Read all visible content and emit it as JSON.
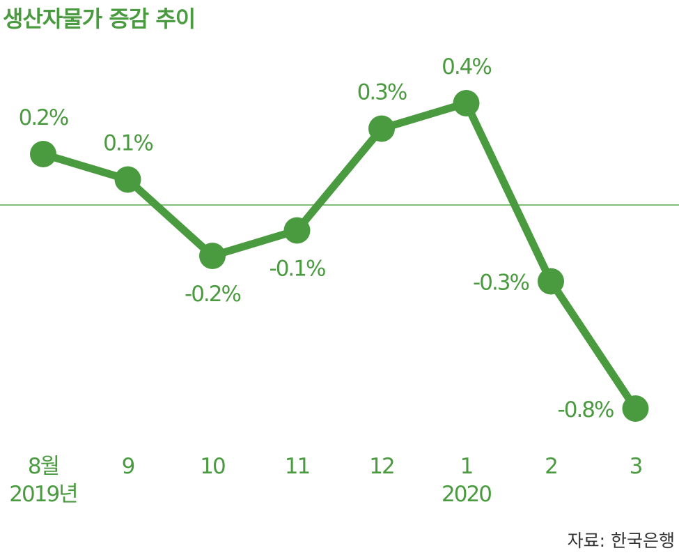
{
  "title": "생산자물가 증감 추이",
  "source": "자료: 한국은행",
  "colors": {
    "accent": "#4a9a3f",
    "baseline": "#7fbf75",
    "text": "#333333"
  },
  "chart_data": {
    "type": "line",
    "categories": [
      "8월",
      "9",
      "10",
      "11",
      "12",
      "1",
      "2",
      "3"
    ],
    "year_labels": [
      "2019년",
      "",
      "",
      "",
      "",
      "2020",
      "",
      ""
    ],
    "values": [
      0.2,
      0.1,
      -0.2,
      -0.1,
      0.3,
      0.4,
      -0.3,
      -0.8
    ],
    "value_labels": [
      "0.2%",
      "0.1%",
      "-0.2%",
      "-0.1%",
      "0.3%",
      "0.4%",
      "-0.3%",
      "-0.8%"
    ],
    "baseline": 0,
    "grid": false
  }
}
